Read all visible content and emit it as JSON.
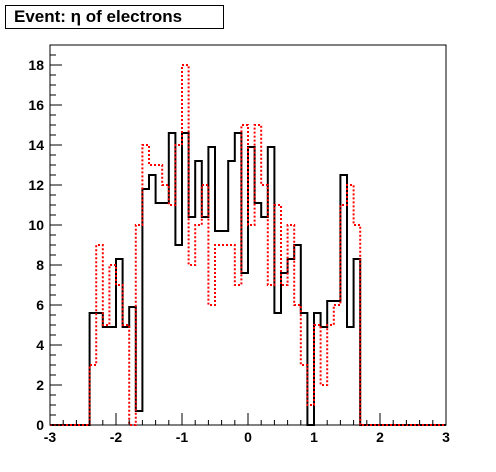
{
  "chart_data": {
    "type": "histogram",
    "title": "Event: η of electrons",
    "xlabel": "",
    "ylabel": "",
    "xlim": [
      -3,
      3
    ],
    "ylim": [
      0,
      19
    ],
    "bin_width": 0.1,
    "x_ticks": [
      -3,
      -2,
      -1,
      0,
      1,
      2,
      3
    ],
    "x_tick_labels": [
      "-3",
      "-2",
      "-1",
      "0",
      "1",
      "2",
      "3"
    ],
    "y_ticks": [
      0,
      2,
      4,
      6,
      8,
      10,
      12,
      14,
      16,
      18
    ],
    "y_tick_labels": [
      "0",
      "2",
      "4",
      "6",
      "8",
      "10",
      "12",
      "14",
      "16",
      "18"
    ],
    "grid": false,
    "legend": "none",
    "series": [
      {
        "style": "solid",
        "color": "#000000",
        "start": -2.4,
        "values": [
          5.6,
          5.6,
          4.9,
          4.9,
          8.3,
          4.9,
          5.9,
          0.7,
          11.8,
          12.5,
          11.1,
          11.1,
          14.6,
          9.0,
          14.6,
          10.4,
          13.2,
          10.4,
          13.9,
          9.7,
          9.7,
          13.2,
          14.6,
          7.6,
          13.9,
          11.1,
          10.4,
          13.9,
          5.6,
          7.6,
          8.3,
          9.0,
          5.6,
          0.0,
          5.6,
          4.9,
          6.2,
          6.2,
          12.5,
          4.9,
          8.3
        ]
      },
      {
        "style": "dotted",
        "color": "#ff0000",
        "start": -2.4,
        "values": [
          3.0,
          9.0,
          5.0,
          8.0,
          7.0,
          5.0,
          0.0,
          10.0,
          14.0,
          13.0,
          13.0,
          12.0,
          11.0,
          14.0,
          18.0,
          8.0,
          10.0,
          12.0,
          6.0,
          9.0,
          9.0,
          9.0,
          7.0,
          15.0,
          10.0,
          15.0,
          12.0,
          7.0,
          11.0,
          7.0,
          10.0,
          6.0,
          3.0,
          1.0,
          5.0,
          2.0,
          5.0,
          6.0,
          11.0,
          12.0,
          10.0
        ]
      }
    ]
  }
}
